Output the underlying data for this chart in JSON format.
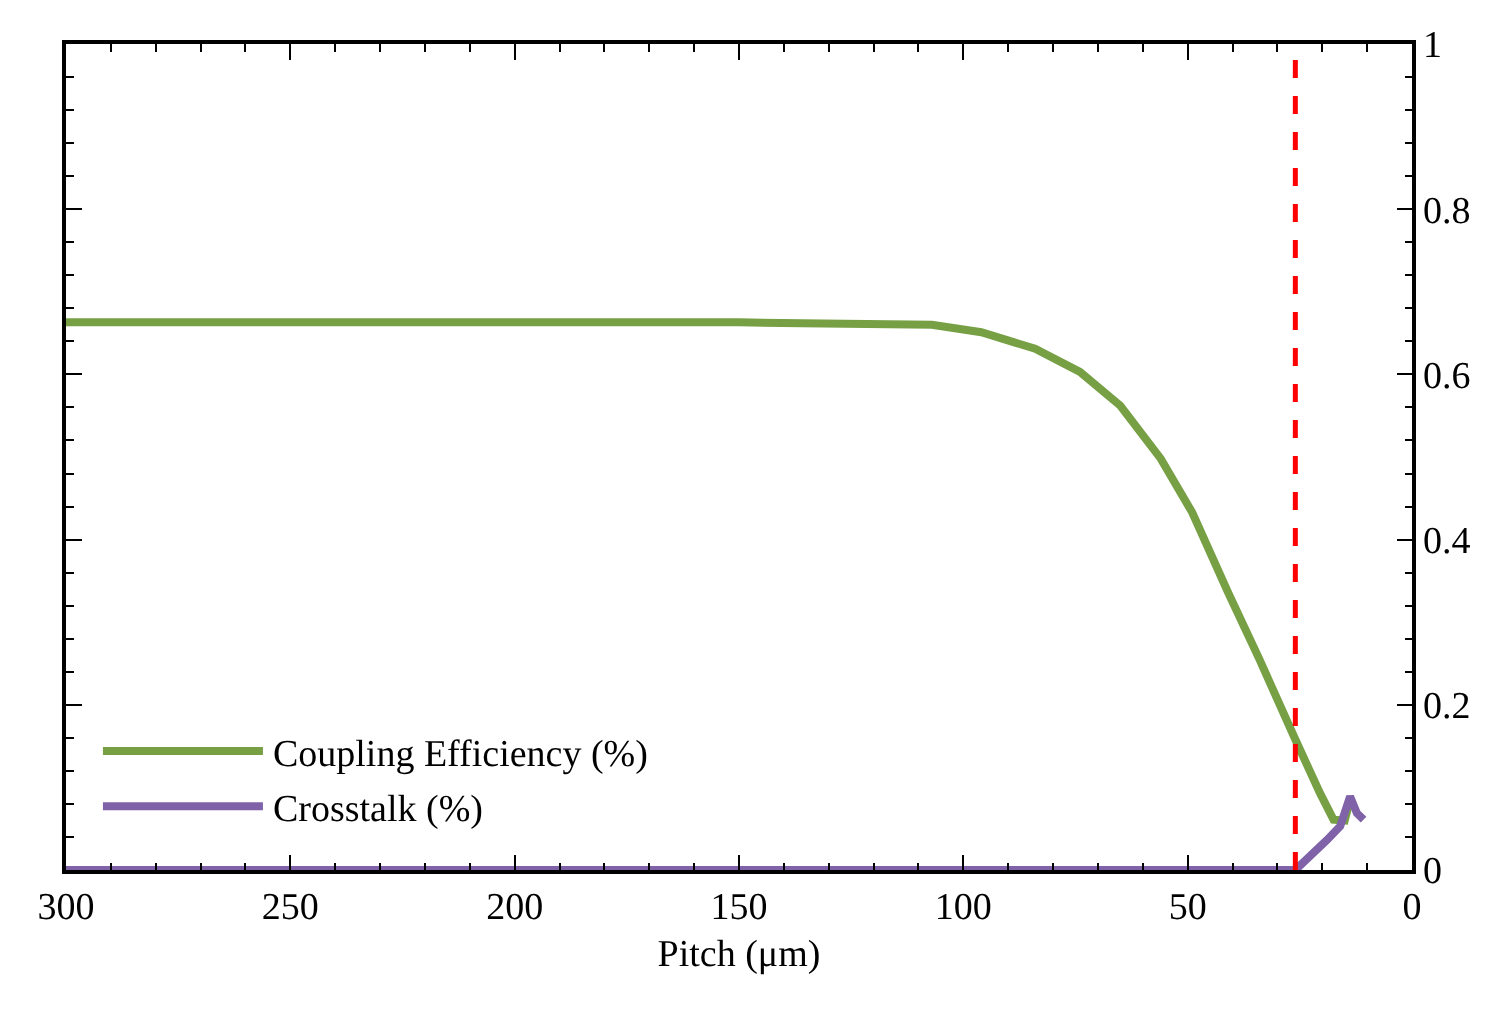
{
  "chart_data": {
    "type": "line",
    "xlabel": "Pitch (μm)",
    "xlim": [
      300,
      0
    ],
    "xticks": [
      300,
      250,
      200,
      150,
      100,
      50,
      0
    ],
    "ylim": [
      0,
      1
    ],
    "yticks": [
      0,
      0.2,
      0.4,
      0.6,
      0.8,
      1
    ],
    "grid": false,
    "legend": "bottom left",
    "marker": "none",
    "line_style": "solid",
    "series": [
      {
        "name": "Coupling Efficiency (%)",
        "color": "#77a045",
        "x": [
          300,
          250,
          200,
          150,
          136,
          107,
          96,
          84,
          74,
          65,
          56,
          49,
          41,
          34,
          26,
          20.5,
          17.5,
          15,
          13.8
        ],
        "values": [
          0.663,
          0.663,
          0.663,
          0.663,
          0.662,
          0.66,
          0.651,
          0.631,
          0.603,
          0.562,
          0.498,
          0.433,
          0.336,
          0.255,
          0.158,
          0.093,
          0.061,
          0.06,
          0.085
        ]
      },
      {
        "name": "Crosstalk (%)",
        "color": "#7f62a8",
        "x": [
          300,
          200,
          100,
          26,
          19,
          16,
          13.8,
          12.3,
          10.8
        ],
        "values": [
          0,
          0,
          0,
          0,
          0.036,
          0.053,
          0.089,
          0.069,
          0.061
        ]
      }
    ],
    "ref_lines": [
      {
        "axis": "x",
        "value": 26,
        "color": "#ff0000",
        "line_style": "dashed"
      }
    ]
  }
}
